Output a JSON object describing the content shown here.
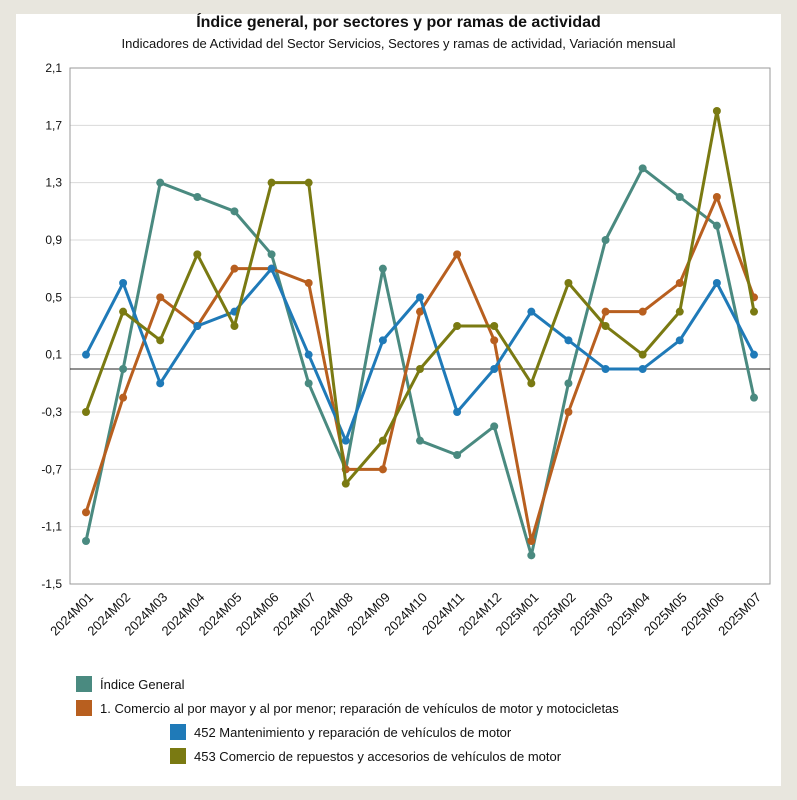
{
  "chart_data": {
    "type": "line",
    "title": "Índice general, por sectores y por ramas de actividad",
    "subtitle": "Indicadores de Actividad del Sector Servicios, Sectores y ramas de actividad, Variación mensual",
    "categories": [
      "2024M01",
      "2024M02",
      "2024M03",
      "2024M04",
      "2024M05",
      "2024M06",
      "2024M07",
      "2024M08",
      "2024M09",
      "2024M10",
      "2024M11",
      "2024M12",
      "2025M01",
      "2025M02",
      "2025M03",
      "2025M04",
      "2025M05",
      "2025M06",
      "2025M07"
    ],
    "ylim": [
      -1.5,
      2.1
    ],
    "yticks": [
      2.1,
      1.7,
      1.3,
      0.9,
      0.5,
      0.1,
      -0.3,
      -0.7,
      -1.1,
      -1.5
    ],
    "ytick_labels": [
      "2,1",
      "1,7",
      "1,3",
      "0,9",
      "0,5",
      "0,1",
      "-0,3",
      "-0,7",
      "-1,1",
      "-1,5"
    ],
    "zero_line": true,
    "grid": true,
    "legend_position": "bottom",
    "series": [
      {
        "name": "Índice General",
        "color": "#4a8a80",
        "values": [
          -1.2,
          0.0,
          1.3,
          1.2,
          1.1,
          0.8,
          -0.1,
          -0.7,
          0.7,
          -0.5,
          -0.6,
          -0.4,
          -1.3,
          -0.1,
          0.9,
          1.4,
          1.2,
          1.0,
          -0.2
        ]
      },
      {
        "name": "1. Comercio al por mayor y al por menor; reparación de vehículos de motor y motocicletas",
        "color": "#b85f1f",
        "values": [
          -1.0,
          -0.2,
          0.5,
          0.3,
          0.7,
          0.7,
          0.6,
          -0.7,
          -0.7,
          0.4,
          0.8,
          0.2,
          -1.2,
          -0.3,
          0.4,
          0.4,
          0.6,
          1.2,
          0.5
        ]
      },
      {
        "name": "452 Mantenimiento y reparación de vehículos de motor",
        "color": "#1f7ab8",
        "values": [
          0.1,
          0.6,
          -0.1,
          0.3,
          0.4,
          0.7,
          0.1,
          -0.5,
          0.2,
          0.5,
          -0.3,
          0.0,
          0.4,
          0.2,
          0.0,
          0.0,
          0.2,
          0.6,
          0.1
        ]
      },
      {
        "name": "453 Comercio de repuestos y accesorios de vehículos de motor",
        "color": "#7a7a12",
        "values": [
          -0.3,
          0.4,
          0.2,
          0.8,
          0.3,
          1.3,
          1.3,
          -0.8,
          -0.5,
          0.0,
          0.3,
          0.3,
          -0.1,
          0.6,
          0.3,
          0.1,
          0.4,
          1.8,
          0.4
        ]
      }
    ]
  }
}
